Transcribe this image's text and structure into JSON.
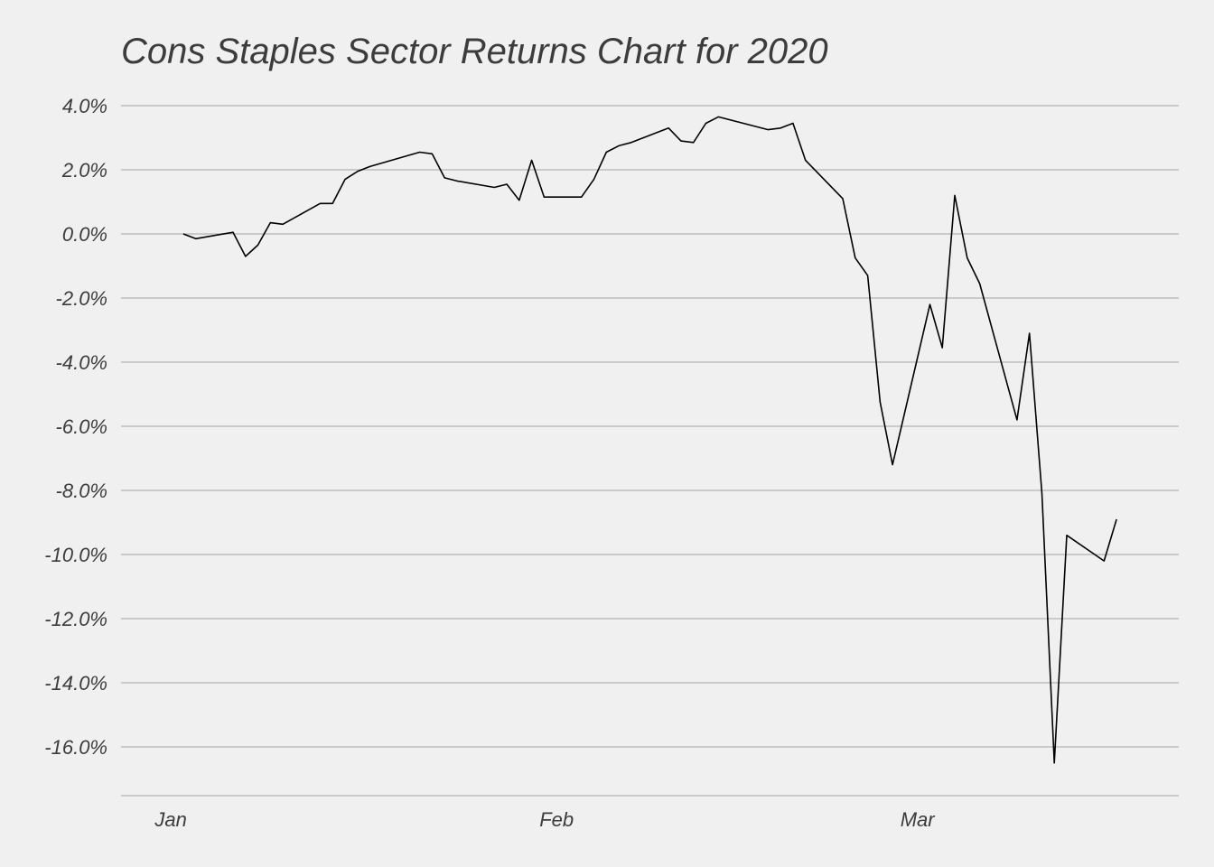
{
  "chart_data": {
    "type": "line",
    "title": "Cons Staples Sector Returns Chart for 2020",
    "xlabel": "",
    "ylabel": "",
    "x_axis": "date",
    "xlim": [
      "2019-12-28",
      "2020-03-22"
    ],
    "x_ticks": [
      {
        "date": "2020-01-01",
        "label": "Jan"
      },
      {
        "date": "2020-02-01",
        "label": "Feb"
      },
      {
        "date": "2020-03-01",
        "label": "Mar"
      }
    ],
    "ylim": [
      -17.5,
      4.0
    ],
    "y_ticks": [
      {
        "value": 4,
        "label": "4.0%"
      },
      {
        "value": 2,
        "label": "2.0%"
      },
      {
        "value": 0,
        "label": "0.0%"
      },
      {
        "value": -2,
        "label": "-2.0%"
      },
      {
        "value": -4,
        "label": "-4.0%"
      },
      {
        "value": -6,
        "label": "-6.0%"
      },
      {
        "value": -8,
        "label": "-8.0%"
      },
      {
        "value": -10,
        "label": "-10.0%"
      },
      {
        "value": -12,
        "label": "-12.0%"
      },
      {
        "value": -14,
        "label": "-14.0%"
      },
      {
        "value": -16,
        "label": "-16.0%"
      }
    ],
    "grid": "horizontal",
    "line_color": "#000000",
    "grid_color": "#bdbdbd",
    "series": [
      {
        "x": [
          "2020-01-02",
          "2020-01-03",
          "2020-01-06",
          "2020-01-07",
          "2020-01-08",
          "2020-01-09",
          "2020-01-10",
          "2020-01-13",
          "2020-01-14",
          "2020-01-15",
          "2020-01-16",
          "2020-01-17",
          "2020-01-21",
          "2020-01-22",
          "2020-01-23",
          "2020-01-24",
          "2020-01-27",
          "2020-01-28",
          "2020-01-29",
          "2020-01-30",
          "2020-01-31",
          "2020-02-03",
          "2020-02-04",
          "2020-02-05",
          "2020-02-06",
          "2020-02-07",
          "2020-02-10",
          "2020-02-11",
          "2020-02-12",
          "2020-02-13",
          "2020-02-14",
          "2020-02-18",
          "2020-02-19",
          "2020-02-20",
          "2020-02-21",
          "2020-02-24",
          "2020-02-25",
          "2020-02-26",
          "2020-02-27",
          "2020-02-28",
          "2020-03-02",
          "2020-03-03",
          "2020-03-04",
          "2020-03-05",
          "2020-03-06",
          "2020-03-09",
          "2020-03-10",
          "2020-03-11",
          "2020-03-12",
          "2020-03-13",
          "2020-03-16",
          "2020-03-17"
        ],
        "values": [
          0.0,
          -0.15,
          0.05,
          -0.7,
          -0.35,
          0.35,
          0.3,
          0.95,
          0.95,
          1.7,
          1.95,
          2.1,
          2.55,
          2.5,
          1.75,
          1.65,
          1.45,
          1.55,
          1.05,
          2.3,
          1.15,
          1.15,
          1.7,
          2.55,
          2.75,
          2.85,
          3.3,
          2.9,
          2.85,
          3.45,
          3.65,
          3.25,
          3.3,
          3.45,
          2.3,
          1.1,
          -0.75,
          -1.3,
          -5.25,
          -7.2,
          -2.2,
          -3.55,
          1.2,
          -0.75,
          -1.55,
          -5.8,
          -3.1,
          -8.1,
          -16.5,
          -9.4,
          -10.2,
          -8.9
        ]
      }
    ]
  }
}
